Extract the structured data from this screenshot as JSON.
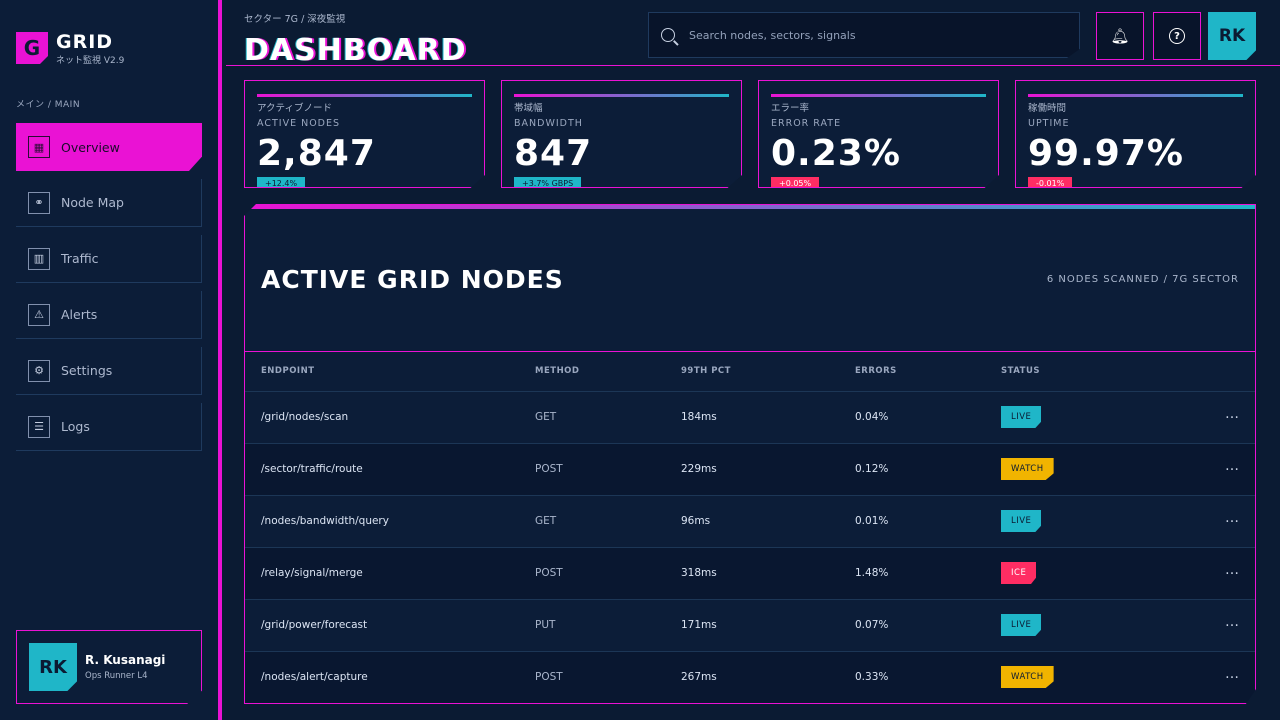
{
  "brand": {
    "logo": "G",
    "name": "GRID",
    "sub": "ネット監視",
    "version": "V2.9"
  },
  "nav_section": "メイン / MAIN",
  "nav": [
    {
      "label": "Overview",
      "icon": "grid-icon",
      "glyph": "▦",
      "active": true
    },
    {
      "label": "Node Map",
      "icon": "nodes-icon",
      "glyph": "⚭"
    },
    {
      "label": "Traffic",
      "icon": "bar-chart-icon",
      "glyph": "▥"
    },
    {
      "label": "Alerts",
      "icon": "warning-icon",
      "glyph": "⚠"
    },
    {
      "label": "Settings",
      "icon": "gear-icon",
      "glyph": "⚙"
    },
    {
      "label": "Logs",
      "icon": "document-icon",
      "glyph": "☰"
    }
  ],
  "user": {
    "initials": "RK",
    "name": "R. Kusanagi",
    "role": "Ops Runner L4"
  },
  "header": {
    "breadcrumb": "セクター 7G / 深夜監視",
    "title": "DASHBOARD",
    "search_placeholder": "Search nodes, sectors, signals",
    "avatar": "RK"
  },
  "stats": [
    {
      "jp": "アクティブノード",
      "en": "ACTIVE NODES",
      "value": "2,847",
      "delta": "+12.4%",
      "tone": "cyan"
    },
    {
      "jp": "帯域幅",
      "en": "BANDWIDTH",
      "value": "847",
      "delta": "+3.7% GBPS",
      "tone": "cyan"
    },
    {
      "jp": "エラー率",
      "en": "ERROR RATE",
      "value": "0.23%",
      "delta": "+0.05%",
      "tone": "pink"
    },
    {
      "jp": "稼働時間",
      "en": "UPTIME",
      "value": "99.97%",
      "delta": "-0.01%",
      "tone": "pink"
    }
  ],
  "table": {
    "title": "ACTIVE GRID NODES",
    "meta": "6 NODES SCANNED / 7G SECTOR",
    "columns": [
      "ENDPOINT",
      "METHOD",
      "99TH PCT",
      "ERRORS",
      "STATUS"
    ],
    "rows": [
      {
        "endpoint": "/grid/nodes/scan",
        "method": "GET",
        "pct": "184ms",
        "errors": "0.04%",
        "status": "LIVE"
      },
      {
        "endpoint": "/sector/traffic/route",
        "method": "POST",
        "pct": "229ms",
        "errors": "0.12%",
        "status": "WATCH"
      },
      {
        "endpoint": "/nodes/bandwidth/query",
        "method": "GET",
        "pct": "96ms",
        "errors": "0.01%",
        "status": "LIVE"
      },
      {
        "endpoint": "/relay/signal/merge",
        "method": "POST",
        "pct": "318ms",
        "errors": "1.48%",
        "status": "ICE"
      },
      {
        "endpoint": "/grid/power/forecast",
        "method": "PUT",
        "pct": "171ms",
        "errors": "0.07%",
        "status": "LIVE"
      },
      {
        "endpoint": "/nodes/alert/capture",
        "method": "POST",
        "pct": "267ms",
        "errors": "0.33%",
        "status": "WATCH"
      }
    ]
  },
  "colors": {
    "accent": "#ea12d4",
    "cyan": "#1fb6c8",
    "warn": "#f1b400",
    "danger": "#ff2d63",
    "bg": "#0b1b33"
  }
}
